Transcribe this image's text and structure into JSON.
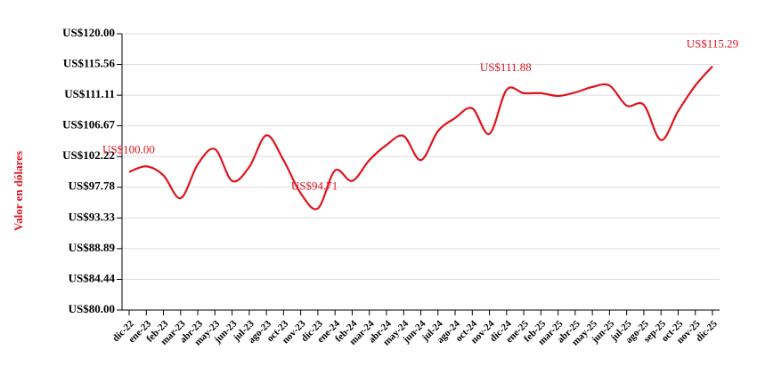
{
  "chart_data": {
    "type": "line",
    "y_label": "Valor en dólares",
    "categories": [
      "dic-22",
      "ene-23",
      "feb-23",
      "mar-23",
      "abr-23",
      "may-23",
      "jun-23",
      "jul-23",
      "ago-23",
      "oct-23",
      "nov-23",
      "dic-23",
      "ene-24",
      "feb-24",
      "mar-24",
      "abr-24",
      "may-24",
      "jun-24",
      "jul-24",
      "ago-24",
      "oct-24",
      "nov-24",
      "dic-24",
      "ene-25",
      "feb-25",
      "mar-25",
      "abr-25",
      "may-25",
      "jun-25",
      "jul-25",
      "ago-25",
      "sep-25",
      "oct-25",
      "nov-25",
      "dic-25"
    ],
    "series": [
      {
        "name": "Valor",
        "color": "#e0141e",
        "values": [
          100.0,
          100.8,
          99.5,
          96.2,
          101.1,
          103.3,
          98.7,
          100.7,
          105.3,
          101.7,
          96.9,
          94.71,
          100.2,
          98.7,
          101.7,
          103.9,
          105.2,
          101.7,
          105.9,
          107.8,
          109.2,
          105.5,
          111.88,
          111.4,
          111.4,
          111.0,
          111.5,
          112.3,
          112.5,
          109.6,
          109.7,
          104.6,
          108.8,
          112.5,
          115.29
        ],
        "value_labels": [
          "US$100.00",
          null,
          null,
          null,
          null,
          null,
          null,
          null,
          null,
          null,
          null,
          "US$94.71",
          null,
          null,
          null,
          null,
          null,
          null,
          null,
          null,
          null,
          null,
          "US$111.88",
          null,
          null,
          null,
          null,
          null,
          null,
          null,
          null,
          null,
          null,
          null,
          "US$115.29"
        ]
      }
    ],
    "ylim": [
      80,
      120
    ],
    "yticks": [
      {
        "value": 80,
        "label": "US$80.00"
      },
      {
        "value": 84.44,
        "label": "US$84.44"
      },
      {
        "value": 88.89,
        "label": "US$88.89"
      },
      {
        "value": 93.33,
        "label": "US$93.33"
      },
      {
        "value": 97.78,
        "label": "US$97.78"
      },
      {
        "value": 102.22,
        "label": "US$102.22"
      },
      {
        "value": 106.67,
        "label": "US$106.67"
      },
      {
        "value": 111.11,
        "label": "US$111.11"
      },
      {
        "value": 115.56,
        "label": "US$115.56"
      },
      {
        "value": 120,
        "label": "US$120.00"
      }
    ],
    "grid": true
  }
}
